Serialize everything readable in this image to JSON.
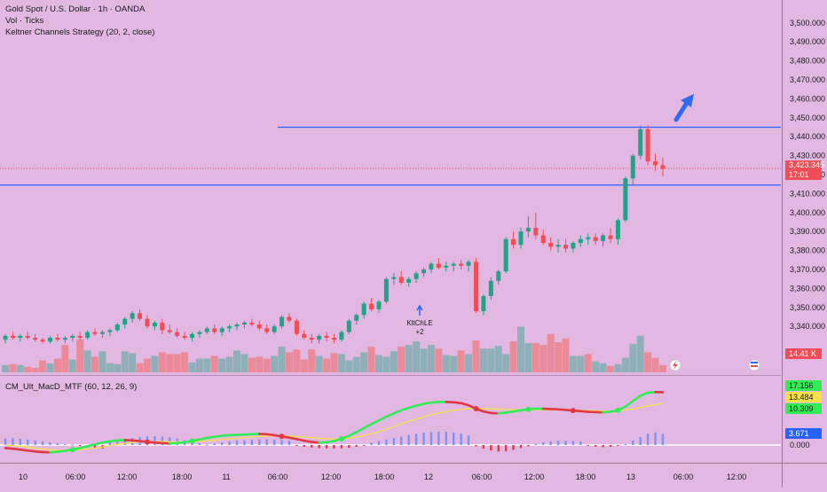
{
  "header": {
    "symbol_line": "Gold Spot / U.S. Dollar · 1h · OANDA",
    "vol_line": "Vol · Ticks",
    "strategy_line": "Keltner Channels Strategy (20, 2, close)"
  },
  "indicator": {
    "title": "CM_Ult_MacD_MTF (60, 12, 26, 9)"
  },
  "price_badge": {
    "price": "3,423.345",
    "countdown": "17:01"
  },
  "volume_badge": "14.41 K",
  "macd_badges": {
    "macd": "17.156",
    "signal": "13.484",
    "other": "10.309",
    "hist": "3.671"
  },
  "signal_label": {
    "line1": "KltChLE",
    "line2": "+2"
  },
  "colors": {
    "background": "#e2b8e3",
    "up": "#22a386",
    "down": "#ef4d57",
    "vol_up": "#8fb0b8",
    "vol_down": "#eb8a98",
    "level_line": "#2962ff",
    "macd_up": "#31ec55",
    "macd_down": "#e03845",
    "signal_line": "#f5e04a",
    "hist_up": "#7b94f5",
    "hist_down": "#e03845"
  },
  "chart_data": [
    {
      "type": "candlestick",
      "title": "Gold Spot / U.S. Dollar · 1h · OANDA",
      "ylim": [
        3330,
        3505
      ],
      "y_ticks": [
        3340,
        3350,
        3360,
        3370,
        3380,
        3390,
        3400,
        3410,
        3420,
        3430,
        3440,
        3450,
        3460,
        3470,
        3480,
        3490,
        3500
      ],
      "y_tick_labels": [
        "3,340.000",
        "3,350.000",
        "3,360.000",
        "3,370.000",
        "3,380.000",
        "3,390.000",
        "3,400.000",
        "3,410.000",
        "3,420.000",
        "3,430.000",
        "3,440.000",
        "3,450.000",
        "3,460.000",
        "3,470.000",
        "3,480.000",
        "3,490.000",
        "3,500.000"
      ],
      "x_ticks": [
        "10",
        "06:00",
        "12:00",
        "18:00",
        "11",
        "06:00",
        "12:00",
        "18:00",
        "12",
        "06:00",
        "12:00",
        "18:00",
        "13",
        "06:00",
        "12:00"
      ],
      "horizontal_levels": [
        3414.5,
        3445
      ],
      "current_price": 3423.345,
      "candles_ohlc": [
        [
          3333,
          3336,
          3331,
          3335
        ],
        [
          3335,
          3337,
          3333,
          3334
        ],
        [
          3334,
          3336,
          3332,
          3335
        ],
        [
          3335,
          3337,
          3333,
          3334
        ],
        [
          3334,
          3336,
          3332,
          3333
        ],
        [
          3333,
          3334,
          3331,
          3332
        ],
        [
          3332,
          3335,
          3331,
          3334
        ],
        [
          3334,
          3336,
          3332,
          3333
        ],
        [
          3333,
          3335,
          3331,
          3334
        ],
        [
          3334,
          3336,
          3332,
          3335
        ],
        [
          3335,
          3337,
          3333,
          3334
        ],
        [
          3334,
          3338,
          3333,
          3337
        ],
        [
          3337,
          3339,
          3335,
          3336
        ],
        [
          3336,
          3338,
          3334,
          3337
        ],
        [
          3337,
          3339,
          3335,
          3338
        ],
        [
          3338,
          3342,
          3337,
          3341
        ],
        [
          3341,
          3345,
          3339,
          3344
        ],
        [
          3344,
          3348,
          3342,
          3347
        ],
        [
          3347,
          3349,
          3343,
          3344
        ],
        [
          3344,
          3346,
          3339,
          3340
        ],
        [
          3340,
          3343,
          3338,
          3342
        ],
        [
          3342,
          3344,
          3336,
          3338
        ],
        [
          3338,
          3341,
          3336,
          3337
        ],
        [
          3337,
          3339,
          3334,
          3335
        ],
        [
          3335,
          3337,
          3333,
          3334
        ],
        [
          3334,
          3337,
          3332,
          3336
        ],
        [
          3336,
          3338,
          3334,
          3337
        ],
        [
          3337,
          3340,
          3336,
          3339
        ],
        [
          3339,
          3341,
          3336,
          3337
        ],
        [
          3337,
          3340,
          3335,
          3339
        ],
        [
          3339,
          3341,
          3337,
          3340
        ],
        [
          3340,
          3342,
          3338,
          3341
        ],
        [
          3341,
          3343,
          3339,
          3342
        ],
        [
          3342,
          3344,
          3340,
          3341
        ],
        [
          3341,
          3343,
          3338,
          3339
        ],
        [
          3339,
          3341,
          3336,
          3337
        ],
        [
          3337,
          3341,
          3336,
          3340
        ],
        [
          3340,
          3346,
          3339,
          3345
        ],
        [
          3345,
          3347,
          3342,
          3343
        ],
        [
          3343,
          3344,
          3335,
          3336
        ],
        [
          3336,
          3338,
          3333,
          3334
        ],
        [
          3334,
          3336,
          3331,
          3333
        ],
        [
          3333,
          3336,
          3331,
          3335
        ],
        [
          3335,
          3337,
          3332,
          3334
        ],
        [
          3334,
          3336,
          3331,
          3333
        ],
        [
          3333,
          3338,
          3332,
          3337
        ],
        [
          3337,
          3344,
          3336,
          3343
        ],
        [
          3343,
          3347,
          3341,
          3346
        ],
        [
          3346,
          3353,
          3344,
          3352
        ],
        [
          3352,
          3355,
          3348,
          3349
        ],
        [
          3349,
          3354,
          3347,
          3353
        ],
        [
          3353,
          3366,
          3352,
          3365
        ],
        [
          3365,
          3368,
          3362,
          3366
        ],
        [
          3366,
          3369,
          3362,
          3363
        ],
        [
          3363,
          3366,
          3361,
          3365
        ],
        [
          3365,
          3369,
          3363,
          3368
        ],
        [
          3368,
          3371,
          3366,
          3370
        ],
        [
          3370,
          3374,
          3368,
          3373
        ],
        [
          3373,
          3376,
          3370,
          3371
        ],
        [
          3371,
          3374,
          3369,
          3372
        ],
        [
          3372,
          3374,
          3369,
          3373
        ],
        [
          3373,
          3375,
          3370,
          3372
        ],
        [
          3372,
          3375,
          3369,
          3374
        ],
        [
          3374,
          3376,
          3347,
          3348
        ],
        [
          3348,
          3357,
          3346,
          3356
        ],
        [
          3356,
          3366,
          3354,
          3364
        ],
        [
          3364,
          3370,
          3362,
          3369
        ],
        [
          3369,
          3387,
          3368,
          3386
        ],
        [
          3386,
          3390,
          3381,
          3383
        ],
        [
          3383,
          3392,
          3381,
          3390
        ],
        [
          3390,
          3398,
          3387,
          3392
        ],
        [
          3392,
          3400,
          3386,
          3388
        ],
        [
          3388,
          3391,
          3383,
          3384
        ],
        [
          3384,
          3387,
          3380,
          3382
        ],
        [
          3382,
          3386,
          3379,
          3383
        ],
        [
          3383,
          3386,
          3379,
          3381
        ],
        [
          3381,
          3385,
          3379,
          3384
        ],
        [
          3384,
          3388,
          3382,
          3386
        ],
        [
          3386,
          3389,
          3383,
          3387
        ],
        [
          3387,
          3389,
          3383,
          3385
        ],
        [
          3385,
          3389,
          3382,
          3388
        ],
        [
          3388,
          3392,
          3384,
          3386
        ],
        [
          3386,
          3397,
          3383,
          3396
        ],
        [
          3396,
          3419,
          3395,
          3418
        ],
        [
          3418,
          3431,
          3414,
          3430
        ],
        [
          3430,
          3446,
          3428,
          3444
        ],
        [
          3444,
          3446,
          3425,
          3427
        ],
        [
          3427,
          3431,
          3422,
          3425
        ],
        [
          3425,
          3429,
          3419,
          3423
        ]
      ]
    },
    {
      "type": "bar",
      "title": "Vol · Ticks",
      "ylim": [
        0,
        100
      ],
      "values": [
        8,
        9,
        8,
        6,
        5,
        13,
        10,
        15,
        30,
        14,
        36,
        24,
        17,
        23,
        10,
        9,
        23,
        21,
        10,
        15,
        18,
        22,
        20,
        20,
        22,
        11,
        15,
        15,
        18,
        15,
        17,
        24,
        20,
        16,
        17,
        15,
        18,
        28,
        22,
        25,
        14,
        25,
        18,
        15,
        21,
        20,
        13,
        17,
        22,
        28,
        19,
        17,
        23,
        28,
        30,
        34,
        26,
        30,
        26,
        19,
        18,
        24,
        20,
        35,
        26,
        26,
        29,
        20,
        34,
        50,
        32,
        32,
        30,
        42,
        33,
        37,
        18,
        18,
        20,
        12,
        10,
        7,
        9,
        16,
        31,
        40,
        22,
        16,
        8
      ],
      "up": [
        1,
        0,
        1,
        0,
        0,
        0,
        1,
        0,
        0,
        1,
        0,
        1,
        0,
        1,
        1,
        1,
        1,
        1,
        0,
        0,
        1,
        0,
        0,
        0,
        0,
        1,
        1,
        1,
        0,
        1,
        1,
        1,
        1,
        0,
        0,
        0,
        1,
        1,
        0,
        0,
        0,
        0,
        1,
        0,
        0,
        1,
        1,
        1,
        1,
        0,
        1,
        1,
        1,
        0,
        1,
        1,
        1,
        1,
        0,
        1,
        1,
        0,
        1,
        0,
        1,
        1,
        1,
        1,
        0,
        1,
        1,
        0,
        0,
        0,
        0,
        0,
        1,
        1,
        0,
        1,
        1,
        0,
        1,
        1,
        1,
        1,
        0,
        0,
        0
      ]
    },
    {
      "type": "line",
      "title": "CM_Ult_MacD_MTF (60, 12, 26, 9)",
      "ylim": [
        -4,
        21
      ],
      "zero_label": "0.000",
      "series": [
        {
          "values": [
            -1,
            -1.2,
            -1.5,
            -1.8,
            -2.1,
            -2.3,
            -2.4,
            -2.2,
            -1.9,
            -1.5,
            -1.0,
            -0.4,
            0.2,
            0.8,
            1.2,
            1.5,
            1.6,
            1.5,
            1.3,
            1.0,
            0.8,
            0.6,
            0.5,
            0.6,
            0.9,
            1.3,
            1.8,
            2.3,
            2.7,
            3.0,
            3.2,
            3.3,
            3.4,
            3.5,
            3.6,
            3.5,
            3.2,
            2.8,
            2.4,
            1.9,
            1.4,
            1.0,
            0.8,
            0.9,
            1.3,
            2.0,
            3.0,
            4.2,
            5.5,
            6.8,
            8.0,
            9.2,
            10.3,
            11.3,
            12.1,
            12.8,
            13.4,
            13.8,
            14.0,
            14.0,
            13.9,
            13.6,
            12.9,
            11.8,
            10.9,
            10.4,
            10.3,
            10.5,
            10.9,
            11.3,
            11.6,
            11.8,
            11.8,
            11.7,
            11.6,
            11.4,
            11.2,
            11.0,
            10.8,
            10.7,
            10.6,
            10.8,
            11.3,
            12.5,
            14.3,
            16.0,
            17.0,
            17.2,
            17.156
          ]
        },
        {
          "values": [
            0.0,
            -0.2,
            -0.4,
            -0.7,
            -1.0,
            -1.3,
            -1.5,
            -1.7,
            -1.7,
            -1.7,
            -1.5,
            -1.3,
            -1.0,
            -0.6,
            -0.2,
            0.2,
            0.5,
            0.8,
            1.0,
            1.1,
            1.1,
            1.1,
            1.0,
            1.0,
            1.0,
            1.1,
            1.2,
            1.4,
            1.6,
            1.8,
            2.0,
            2.2,
            2.4,
            2.6,
            2.8,
            2.9,
            3.0,
            3.0,
            2.9,
            2.8,
            2.6,
            2.4,
            2.2,
            2.0,
            1.9,
            2.0,
            2.2,
            2.6,
            3.1,
            3.7,
            4.4,
            5.2,
            6.0,
            6.9,
            7.7,
            8.5,
            9.2,
            9.8,
            10.4,
            10.9,
            11.3,
            11.6,
            11.8,
            11.9,
            11.9,
            11.8,
            11.7,
            11.6,
            11.5,
            11.4,
            11.4,
            11.4,
            11.4,
            11.4,
            11.4,
            11.4,
            11.3,
            11.3,
            11.2,
            11.1,
            11.0,
            11.0,
            11.1,
            11.3,
            11.7,
            12.2,
            12.7,
            13.1,
            13.484
          ]
        }
      ],
      "histogram": [
        2.1,
        2.2,
        2.0,
        1.8,
        1.5,
        1.2,
        0.9,
        0.6,
        0.3,
        0.1,
        -0.2,
        -0.5,
        -0.8,
        -1.1,
        1.4,
        1.7,
        2.0,
        2.3,
        2.6,
        2.8,
        2.9,
        2.8,
        2.5,
        2.1,
        1.6,
        1.1,
        0.6,
        0.2,
        0.5,
        0.9,
        1.2,
        1.5,
        1.6,
        1.7,
        1.8,
        1.8,
        1.7,
        1.6,
        1.4,
        -0.3,
        -0.6,
        -0.8,
        -1.0,
        -1.1,
        -1.2,
        -1.1,
        -0.9,
        -0.6,
        -0.2,
        0.8,
        1.3,
        1.8,
        2.3,
        2.8,
        3.3,
        3.7,
        4.0,
        4.2,
        4.3,
        4.3,
        4.1,
        3.7,
        3.1,
        -0.4,
        -1.2,
        -1.8,
        -2.1,
        -2.0,
        -1.6,
        -1.0,
        -0.4,
        0.4,
        0.9,
        1.2,
        1.4,
        1.4,
        1.3,
        1.2,
        -0.2,
        -0.5,
        -0.7,
        -0.6,
        -0.3,
        0.3,
        1.4,
        2.6,
        3.7,
        4.1,
        3.671
      ]
    }
  ]
}
